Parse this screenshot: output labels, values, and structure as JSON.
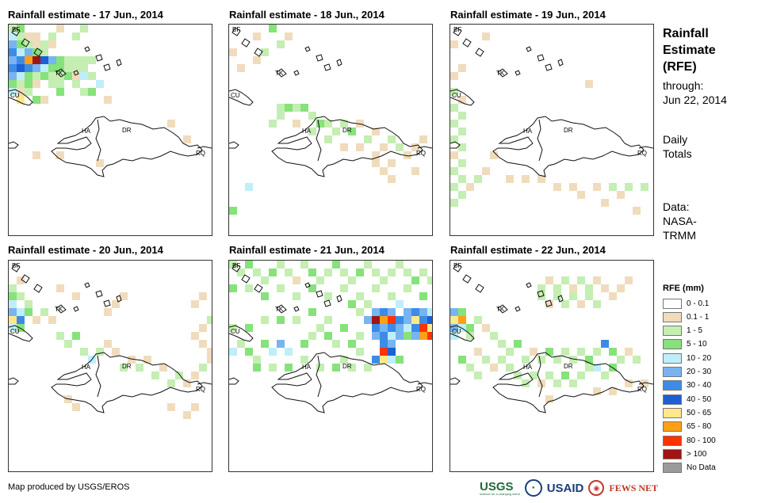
{
  "panels": [
    {
      "title": "Rainfall estimate - 17 Jun., 2014"
    },
    {
      "title": "Rainfall estimate - 18 Jun., 2014"
    },
    {
      "title": "Rainfall estimate - 19 Jun., 2014"
    },
    {
      "title": "Rainfall estimate - 20 Jun., 2014"
    },
    {
      "title": "Rainfall estimate - 21 Jun., 2014"
    },
    {
      "title": "Rainfall estimate - 22 Jun., 2014"
    }
  ],
  "map_labels": [
    "BF",
    "TK",
    "CU",
    "HA",
    "DR",
    "RQ"
  ],
  "side": {
    "title_line1": "Rainfall",
    "title_line2": "Estimate",
    "title_line3": "(RFE)",
    "through_label": "through:",
    "through_date": "Jun 22, 2014",
    "period_line1": "Daily",
    "period_line2": "Totals",
    "data_line1": "Data:",
    "data_line2": "NASA-",
    "data_line3": "TRMM"
  },
  "legend": {
    "title": "RFE (mm)",
    "items": [
      {
        "label": "0 - 0.1",
        "color": "#ffffff"
      },
      {
        "label": "0.1 - 1",
        "color": "#f0dcbc"
      },
      {
        "label": "1 - 5",
        "color": "#c4eeb2"
      },
      {
        "label": "5 - 10",
        "color": "#86e27a"
      },
      {
        "label": "10 - 20",
        "color": "#bfeefa"
      },
      {
        "label": "20 - 30",
        "color": "#78b4f0"
      },
      {
        "label": "30 - 40",
        "color": "#3c8ce6"
      },
      {
        "label": "40 - 50",
        "color": "#1c5fd6"
      },
      {
        "label": "50 - 65",
        "color": "#ffe88c"
      },
      {
        "label": "65 - 80",
        "color": "#ffa014"
      },
      {
        "label": "80 - 100",
        "color": "#ff3200"
      },
      {
        "label": "> 100",
        "color": "#a01414"
      },
      {
        "label": "No Data",
        "color": "#9a9a9a"
      }
    ]
  },
  "footer": {
    "credit": "Map produced by USGS/EROS",
    "logo_usgs": "USGS",
    "logo_usgs_tagline": "science for a changing world",
    "logo_usaid": "USAID",
    "logo_fews": "FEWS NET"
  }
}
